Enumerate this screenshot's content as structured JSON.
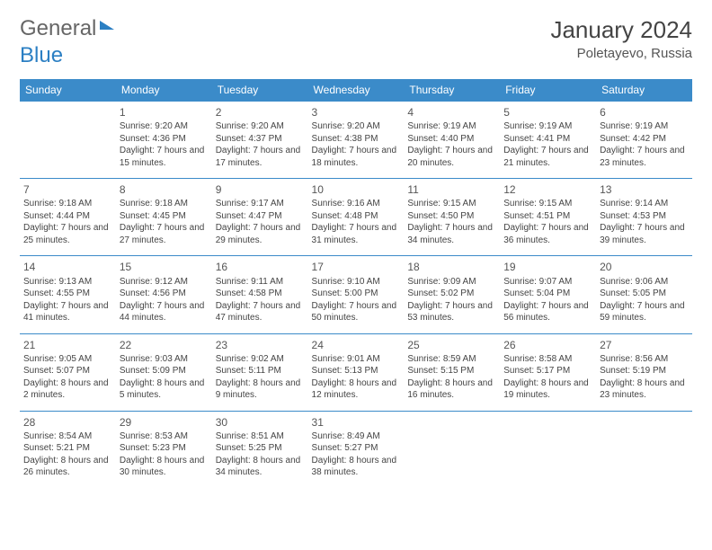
{
  "logo": {
    "text1": "General",
    "text2": "Blue"
  },
  "title": "January 2024",
  "location": "Poletayevo, Russia",
  "colors": {
    "header_bg": "#3b8bc9",
    "header_text": "#ffffff",
    "row_border": "#3b8bc9",
    "text": "#444444",
    "logo_gray": "#666666",
    "logo_blue": "#2b7fc3"
  },
  "dayHeaders": [
    "Sunday",
    "Monday",
    "Tuesday",
    "Wednesday",
    "Thursday",
    "Friday",
    "Saturday"
  ],
  "weeks": [
    [
      null,
      {
        "n": "1",
        "sr": "9:20 AM",
        "ss": "4:36 PM",
        "dl": "7 hours and 15 minutes."
      },
      {
        "n": "2",
        "sr": "9:20 AM",
        "ss": "4:37 PM",
        "dl": "7 hours and 17 minutes."
      },
      {
        "n": "3",
        "sr": "9:20 AM",
        "ss": "4:38 PM",
        "dl": "7 hours and 18 minutes."
      },
      {
        "n": "4",
        "sr": "9:19 AM",
        "ss": "4:40 PM",
        "dl": "7 hours and 20 minutes."
      },
      {
        "n": "5",
        "sr": "9:19 AM",
        "ss": "4:41 PM",
        "dl": "7 hours and 21 minutes."
      },
      {
        "n": "6",
        "sr": "9:19 AM",
        "ss": "4:42 PM",
        "dl": "7 hours and 23 minutes."
      }
    ],
    [
      {
        "n": "7",
        "sr": "9:18 AM",
        "ss": "4:44 PM",
        "dl": "7 hours and 25 minutes."
      },
      {
        "n": "8",
        "sr": "9:18 AM",
        "ss": "4:45 PM",
        "dl": "7 hours and 27 minutes."
      },
      {
        "n": "9",
        "sr": "9:17 AM",
        "ss": "4:47 PM",
        "dl": "7 hours and 29 minutes."
      },
      {
        "n": "10",
        "sr": "9:16 AM",
        "ss": "4:48 PM",
        "dl": "7 hours and 31 minutes."
      },
      {
        "n": "11",
        "sr": "9:15 AM",
        "ss": "4:50 PM",
        "dl": "7 hours and 34 minutes."
      },
      {
        "n": "12",
        "sr": "9:15 AM",
        "ss": "4:51 PM",
        "dl": "7 hours and 36 minutes."
      },
      {
        "n": "13",
        "sr": "9:14 AM",
        "ss": "4:53 PM",
        "dl": "7 hours and 39 minutes."
      }
    ],
    [
      {
        "n": "14",
        "sr": "9:13 AM",
        "ss": "4:55 PM",
        "dl": "7 hours and 41 minutes."
      },
      {
        "n": "15",
        "sr": "9:12 AM",
        "ss": "4:56 PM",
        "dl": "7 hours and 44 minutes."
      },
      {
        "n": "16",
        "sr": "9:11 AM",
        "ss": "4:58 PM",
        "dl": "7 hours and 47 minutes."
      },
      {
        "n": "17",
        "sr": "9:10 AM",
        "ss": "5:00 PM",
        "dl": "7 hours and 50 minutes."
      },
      {
        "n": "18",
        "sr": "9:09 AM",
        "ss": "5:02 PM",
        "dl": "7 hours and 53 minutes."
      },
      {
        "n": "19",
        "sr": "9:07 AM",
        "ss": "5:04 PM",
        "dl": "7 hours and 56 minutes."
      },
      {
        "n": "20",
        "sr": "9:06 AM",
        "ss": "5:05 PM",
        "dl": "7 hours and 59 minutes."
      }
    ],
    [
      {
        "n": "21",
        "sr": "9:05 AM",
        "ss": "5:07 PM",
        "dl": "8 hours and 2 minutes."
      },
      {
        "n": "22",
        "sr": "9:03 AM",
        "ss": "5:09 PM",
        "dl": "8 hours and 5 minutes."
      },
      {
        "n": "23",
        "sr": "9:02 AM",
        "ss": "5:11 PM",
        "dl": "8 hours and 9 minutes."
      },
      {
        "n": "24",
        "sr": "9:01 AM",
        "ss": "5:13 PM",
        "dl": "8 hours and 12 minutes."
      },
      {
        "n": "25",
        "sr": "8:59 AM",
        "ss": "5:15 PM",
        "dl": "8 hours and 16 minutes."
      },
      {
        "n": "26",
        "sr": "8:58 AM",
        "ss": "5:17 PM",
        "dl": "8 hours and 19 minutes."
      },
      {
        "n": "27",
        "sr": "8:56 AM",
        "ss": "5:19 PM",
        "dl": "8 hours and 23 minutes."
      }
    ],
    [
      {
        "n": "28",
        "sr": "8:54 AM",
        "ss": "5:21 PM",
        "dl": "8 hours and 26 minutes."
      },
      {
        "n": "29",
        "sr": "8:53 AM",
        "ss": "5:23 PM",
        "dl": "8 hours and 30 minutes."
      },
      {
        "n": "30",
        "sr": "8:51 AM",
        "ss": "5:25 PM",
        "dl": "8 hours and 34 minutes."
      },
      {
        "n": "31",
        "sr": "8:49 AM",
        "ss": "5:27 PM",
        "dl": "8 hours and 38 minutes."
      },
      null,
      null,
      null
    ]
  ],
  "labels": {
    "sunrise": "Sunrise: ",
    "sunset": "Sunset: ",
    "daylight": "Daylight: "
  }
}
